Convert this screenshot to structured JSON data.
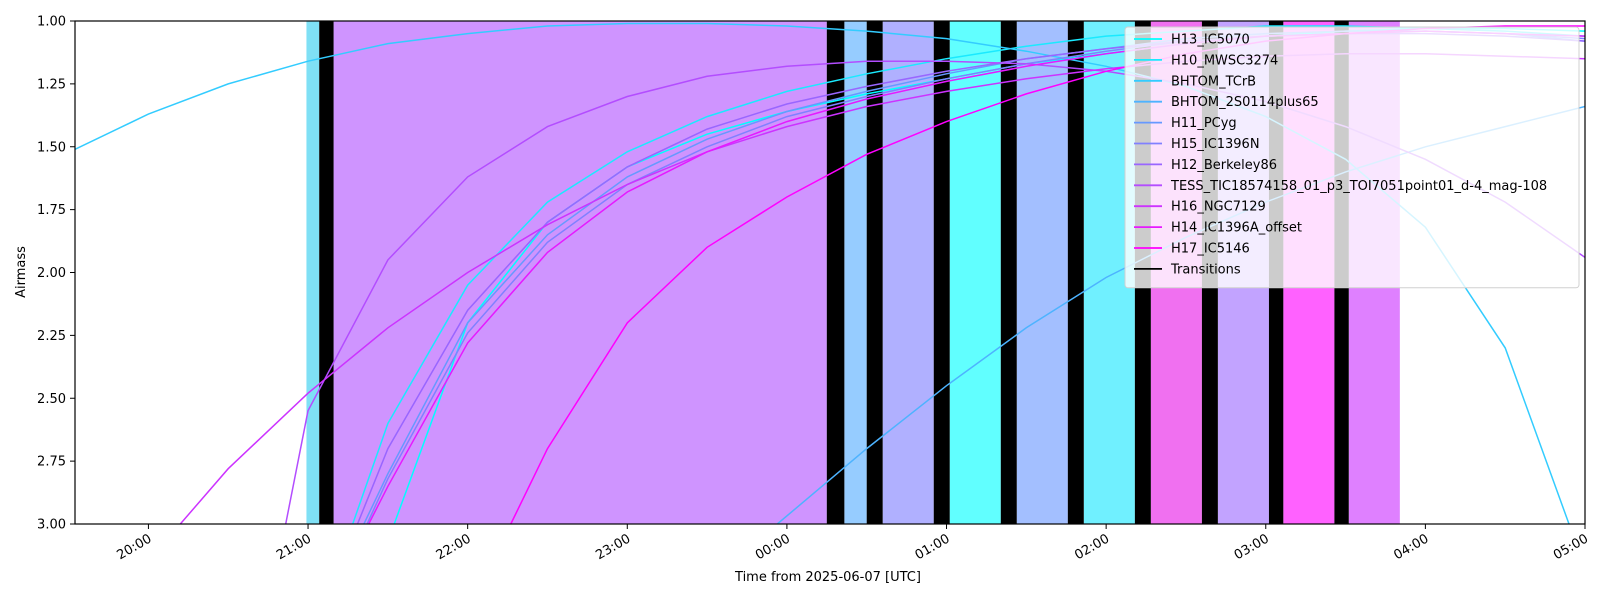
{
  "chart_data": {
    "type": "line",
    "xlabel": "Time from 2025-06-07 [UTC]",
    "ylabel": "Airmass",
    "x_range_hours": [
      19.54,
      29.0
    ],
    "ylim": [
      3.0,
      1.0
    ],
    "y_inverted": true,
    "x_ticks": [
      {
        "h": 20,
        "label": "20:00"
      },
      {
        "h": 21,
        "label": "21:00"
      },
      {
        "h": 22,
        "label": "22:00"
      },
      {
        "h": 23,
        "label": "23:00"
      },
      {
        "h": 24,
        "label": "00:00"
      },
      {
        "h": 25,
        "label": "01:00"
      },
      {
        "h": 26,
        "label": "02:00"
      },
      {
        "h": 27,
        "label": "03:00"
      },
      {
        "h": 28,
        "label": "04:00"
      },
      {
        "h": 29,
        "label": "05:00"
      }
    ],
    "y_ticks": [
      {
        "v": 1.0,
        "label": "1.00"
      },
      {
        "v": 1.25,
        "label": "1.25"
      },
      {
        "v": 1.5,
        "label": "1.50"
      },
      {
        "v": 1.75,
        "label": "1.75"
      },
      {
        "v": 2.0,
        "label": "2.00"
      },
      {
        "v": 2.25,
        "label": "2.25"
      },
      {
        "v": 2.5,
        "label": "2.50"
      },
      {
        "v": 2.75,
        "label": "2.75"
      },
      {
        "v": 3.0,
        "label": "3.00"
      }
    ],
    "grid": false,
    "legend_position": "top-right",
    "spans": [
      {
        "start": 20.99,
        "end": 21.07,
        "color": "#7fe0f5"
      },
      {
        "start": 21.16,
        "end": 24.25,
        "color": "#cf94ff"
      },
      {
        "start": 24.36,
        "end": 24.5,
        "color": "#96ccff"
      },
      {
        "start": 24.6,
        "end": 24.92,
        "color": "#b0b0ff"
      },
      {
        "start": 25.02,
        "end": 25.34,
        "color": "#61ffff"
      },
      {
        "start": 25.44,
        "end": 25.76,
        "color": "#a3bfff"
      },
      {
        "start": 25.86,
        "end": 26.18,
        "color": "#70f0ff"
      },
      {
        "start": 26.28,
        "end": 26.6,
        "color": "#f070f0"
      },
      {
        "start": 26.7,
        "end": 27.02,
        "color": "#c2a3ff"
      },
      {
        "start": 27.11,
        "end": 27.43,
        "color": "#ff61ff"
      },
      {
        "start": 27.52,
        "end": 27.84,
        "color": "#df80ff"
      }
    ],
    "transitions": [
      21.07,
      21.16,
      24.25,
      24.36,
      24.5,
      24.6,
      24.92,
      25.02,
      25.34,
      25.44,
      25.76,
      25.86,
      26.18,
      26.28,
      26.6,
      26.7,
      27.02,
      27.11,
      27.43,
      27.52
    ],
    "series": [
      {
        "name": "H13_IC5070",
        "color": "#00ffff",
        "points": [
          [
            21.54,
            3.0
          ],
          [
            22.0,
            2.2
          ],
          [
            22.5,
            1.8
          ],
          [
            23.0,
            1.58
          ],
          [
            23.5,
            1.45
          ],
          [
            24.0,
            1.36
          ],
          [
            24.5,
            1.29
          ],
          [
            25.0,
            1.23
          ],
          [
            25.5,
            1.17
          ],
          [
            26.0,
            1.13
          ],
          [
            26.5,
            1.09
          ],
          [
            27.0,
            1.06
          ],
          [
            27.5,
            1.04
          ],
          [
            28.0,
            1.03
          ],
          [
            28.5,
            1.03
          ],
          [
            29.0,
            1.04
          ]
        ]
      },
      {
        "name": "H10_MWSC3274",
        "color": "#1aeaff",
        "points": [
          [
            21.28,
            3.0
          ],
          [
            21.5,
            2.6
          ],
          [
            22.0,
            2.05
          ],
          [
            22.5,
            1.72
          ],
          [
            23.0,
            1.52
          ],
          [
            23.5,
            1.38
          ],
          [
            24.0,
            1.28
          ],
          [
            24.5,
            1.21
          ],
          [
            25.0,
            1.15
          ],
          [
            25.5,
            1.1
          ],
          [
            26.0,
            1.06
          ],
          [
            26.5,
            1.04
          ],
          [
            27.0,
            1.02
          ],
          [
            27.5,
            1.02
          ],
          [
            28.0,
            1.03
          ],
          [
            28.5,
            1.04
          ],
          [
            29.0,
            1.06
          ]
        ]
      },
      {
        "name": "BHTOM_TCrB",
        "color": "#33ccff",
        "points": [
          [
            19.54,
            1.51
          ],
          [
            20.0,
            1.37
          ],
          [
            20.5,
            1.25
          ],
          [
            21.0,
            1.16
          ],
          [
            21.5,
            1.09
          ],
          [
            22.0,
            1.05
          ],
          [
            22.5,
            1.02
          ],
          [
            23.0,
            1.01
          ],
          [
            23.5,
            1.01
          ],
          [
            24.0,
            1.02
          ],
          [
            24.5,
            1.04
          ],
          [
            25.0,
            1.07
          ],
          [
            25.5,
            1.12
          ],
          [
            26.0,
            1.18
          ],
          [
            26.5,
            1.26
          ],
          [
            27.0,
            1.38
          ],
          [
            27.5,
            1.55
          ],
          [
            28.0,
            1.82
          ],
          [
            28.5,
            2.3
          ],
          [
            28.9,
            3.0
          ]
        ]
      },
      {
        "name": "BHTOM_2S0114plus65",
        "color": "#4db3ff",
        "points": [
          [
            23.94,
            3.0
          ],
          [
            24.5,
            2.7
          ],
          [
            25.0,
            2.45
          ],
          [
            25.5,
            2.22
          ],
          [
            26.0,
            2.02
          ],
          [
            26.5,
            1.86
          ],
          [
            27.0,
            1.72
          ],
          [
            27.5,
            1.6
          ],
          [
            28.0,
            1.5
          ],
          [
            28.5,
            1.42
          ],
          [
            29.0,
            1.34
          ]
        ]
      },
      {
        "name": "H11_PCyg",
        "color": "#6699ff",
        "points": [
          [
            21.35,
            3.0
          ],
          [
            21.5,
            2.8
          ],
          [
            22.0,
            2.2
          ],
          [
            22.5,
            1.85
          ],
          [
            23.0,
            1.62
          ],
          [
            23.5,
            1.47
          ],
          [
            24.0,
            1.36
          ],
          [
            24.5,
            1.28
          ],
          [
            25.0,
            1.21
          ],
          [
            25.5,
            1.15
          ],
          [
            26.0,
            1.11
          ],
          [
            26.5,
            1.07
          ],
          [
            27.0,
            1.05
          ],
          [
            27.5,
            1.04
          ],
          [
            28.0,
            1.04
          ],
          [
            28.5,
            1.05
          ],
          [
            29.0,
            1.08
          ]
        ]
      },
      {
        "name": "H15_IC1396N",
        "color": "#8080ff",
        "points": [
          [
            21.37,
            3.0
          ],
          [
            21.5,
            2.82
          ],
          [
            22.0,
            2.24
          ],
          [
            22.5,
            1.88
          ],
          [
            23.0,
            1.65
          ],
          [
            23.5,
            1.5
          ],
          [
            24.0,
            1.38
          ],
          [
            24.5,
            1.3
          ],
          [
            25.0,
            1.23
          ],
          [
            25.5,
            1.17
          ],
          [
            26.0,
            1.12
          ],
          [
            26.5,
            1.08
          ],
          [
            27.0,
            1.06
          ],
          [
            27.5,
            1.05
          ],
          [
            28.0,
            1.04
          ],
          [
            28.5,
            1.05
          ],
          [
            29.0,
            1.07
          ]
        ]
      },
      {
        "name": "H12_Berkeley86",
        "color": "#9966ff",
        "points": [
          [
            21.31,
            3.0
          ],
          [
            21.5,
            2.7
          ],
          [
            22.0,
            2.15
          ],
          [
            22.5,
            1.8
          ],
          [
            23.0,
            1.58
          ],
          [
            23.5,
            1.43
          ],
          [
            24.0,
            1.33
          ],
          [
            24.5,
            1.26
          ],
          [
            25.0,
            1.2
          ],
          [
            25.5,
            1.15
          ],
          [
            26.0,
            1.11
          ],
          [
            26.5,
            1.08
          ],
          [
            27.0,
            1.06
          ],
          [
            27.5,
            1.05
          ],
          [
            28.0,
            1.05
          ],
          [
            28.5,
            1.06
          ],
          [
            29.0,
            1.08
          ]
        ]
      },
      {
        "name": "TESS_TIC18574158_01_p3_TOI7051point01_d-4_mag-108",
        "color": "#b34dff",
        "points": [
          [
            20.86,
            3.0
          ],
          [
            21.0,
            2.55
          ],
          [
            21.5,
            1.95
          ],
          [
            22.0,
            1.62
          ],
          [
            22.5,
            1.42
          ],
          [
            23.0,
            1.3
          ],
          [
            23.5,
            1.22
          ],
          [
            24.0,
            1.18
          ],
          [
            24.5,
            1.16
          ],
          [
            25.0,
            1.16
          ],
          [
            25.5,
            1.17
          ],
          [
            26.0,
            1.2
          ],
          [
            26.5,
            1.25
          ],
          [
            27.0,
            1.32
          ],
          [
            27.5,
            1.42
          ],
          [
            28.0,
            1.55
          ],
          [
            28.5,
            1.72
          ],
          [
            29.0,
            1.94
          ]
        ]
      },
      {
        "name": "H16_NGC7129",
        "color": "#cc33ff",
        "points": [
          [
            20.2,
            3.0
          ],
          [
            20.5,
            2.78
          ],
          [
            21.0,
            2.48
          ],
          [
            21.5,
            2.22
          ],
          [
            22.0,
            2.0
          ],
          [
            22.5,
            1.81
          ],
          [
            23.0,
            1.65
          ],
          [
            23.5,
            1.52
          ],
          [
            24.0,
            1.42
          ],
          [
            24.5,
            1.34
          ],
          [
            25.0,
            1.28
          ],
          [
            25.5,
            1.23
          ],
          [
            26.0,
            1.19
          ],
          [
            26.5,
            1.16
          ],
          [
            27.0,
            1.14
          ],
          [
            27.5,
            1.13
          ],
          [
            28.0,
            1.13
          ],
          [
            28.5,
            1.14
          ],
          [
            29.0,
            1.15
          ]
        ]
      },
      {
        "name": "H14_IC1396A_offset",
        "color": "#e61aff",
        "points": [
          [
            21.38,
            3.0
          ],
          [
            21.5,
            2.85
          ],
          [
            22.0,
            2.28
          ],
          [
            22.5,
            1.92
          ],
          [
            23.0,
            1.68
          ],
          [
            23.5,
            1.52
          ],
          [
            24.0,
            1.4
          ],
          [
            24.5,
            1.31
          ],
          [
            25.0,
            1.24
          ],
          [
            25.5,
            1.18
          ],
          [
            26.0,
            1.13
          ],
          [
            26.5,
            1.09
          ],
          [
            27.0,
            1.06
          ],
          [
            27.5,
            1.05
          ],
          [
            28.0,
            1.04
          ],
          [
            28.5,
            1.05
          ],
          [
            29.0,
            1.06
          ]
        ]
      },
      {
        "name": "H17_IC5146",
        "color": "#ff00ff",
        "points": [
          [
            22.27,
            3.0
          ],
          [
            22.5,
            2.7
          ],
          [
            23.0,
            2.2
          ],
          [
            23.5,
            1.9
          ],
          [
            24.0,
            1.7
          ],
          [
            24.5,
            1.53
          ],
          [
            25.0,
            1.4
          ],
          [
            25.5,
            1.29
          ],
          [
            26.0,
            1.2
          ],
          [
            26.5,
            1.13
          ],
          [
            27.0,
            1.08
          ],
          [
            27.5,
            1.05
          ],
          [
            28.0,
            1.03
          ],
          [
            28.5,
            1.02
          ],
          [
            29.0,
            1.02
          ]
        ]
      }
    ],
    "legend": {
      "entries": [
        {
          "label": "H13_IC5070",
          "color": "#00ffff"
        },
        {
          "label": "H10_MWSC3274",
          "color": "#1aeaff"
        },
        {
          "label": "BHTOM_TCrB",
          "color": "#33ccff"
        },
        {
          "label": "BHTOM_2S0114plus65",
          "color": "#4db3ff"
        },
        {
          "label": "H11_PCyg",
          "color": "#6699ff"
        },
        {
          "label": "H15_IC1396N",
          "color": "#8080ff"
        },
        {
          "label": "H12_Berkeley86",
          "color": "#9966ff"
        },
        {
          "label": "TESS_TIC18574158_01_p3_TOI7051point01_d-4_mag-108",
          "color": "#b34dff"
        },
        {
          "label": "H16_NGC7129",
          "color": "#cc33ff"
        },
        {
          "label": "H14_IC1396A_offset",
          "color": "#e61aff"
        },
        {
          "label": "H17_IC5146",
          "color": "#ff00ff"
        },
        {
          "label": "Transitions",
          "color": "#000000"
        }
      ]
    }
  }
}
